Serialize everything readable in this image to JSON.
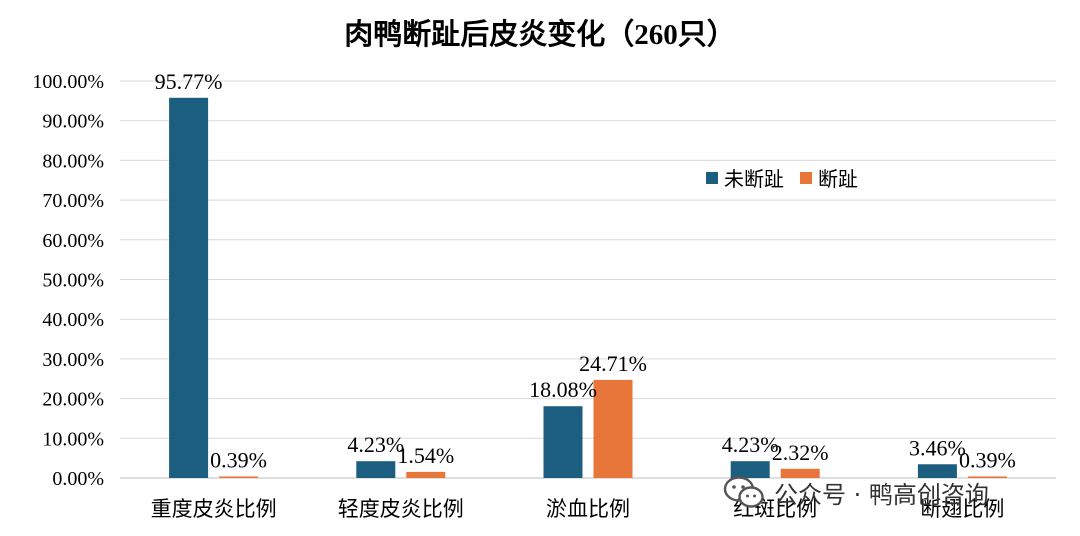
{
  "chart_data": {
    "type": "bar",
    "title": "肉鸭断趾后皮炎变化（260只）",
    "categories": [
      "重度皮炎比例",
      "轻度皮炎比例",
      "淤血比例",
      "红斑比例",
      "断翅比例"
    ],
    "series": [
      {
        "name": "未断趾",
        "color": "#1b5e7f",
        "values": [
          95.77,
          4.23,
          18.08,
          4.23,
          3.46
        ],
        "labels": [
          "95.77%",
          "4.23%",
          "18.08%",
          "4.23%",
          "3.46%"
        ]
      },
      {
        "name": "断趾",
        "color": "#e8763a",
        "values": [
          0.39,
          1.54,
          24.71,
          2.32,
          0.39
        ],
        "labels": [
          "0.39%",
          "1.54%",
          "24.71%",
          "2.32%",
          "0.39%"
        ]
      }
    ],
    "ylim": [
      0,
      100
    ],
    "yticks": [
      "0.00%",
      "10.00%",
      "20.00%",
      "30.00%",
      "40.00%",
      "50.00%",
      "60.00%",
      "70.00%",
      "80.00%",
      "90.00%",
      "100.00%"
    ],
    "grid": true,
    "legend_position": "top-right"
  },
  "watermark": {
    "text": "公众号 · 鸭高创咨询",
    "icon": "wechat-icon"
  }
}
